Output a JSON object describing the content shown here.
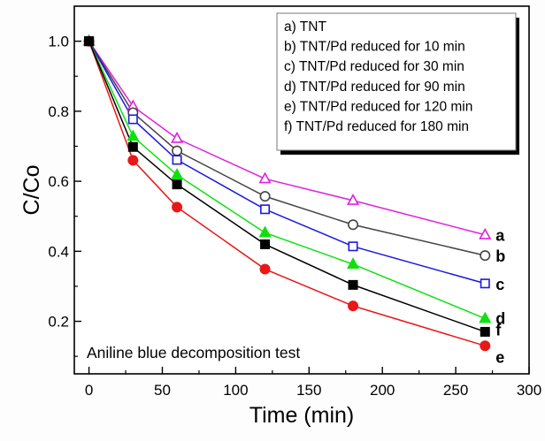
{
  "chart_data": {
    "type": "line",
    "title": "",
    "xlabel": "Time (min)",
    "ylabel": "C/Co",
    "xlim": [
      -10,
      300
    ],
    "ylim": [
      0.05,
      1.1
    ],
    "xticks": [
      0,
      50,
      100,
      150,
      200,
      250,
      300
    ],
    "xtick_labels": [
      "0",
      "50",
      "100",
      "150",
      "200",
      "250",
      "300"
    ],
    "yticks": [
      0.2,
      0.4,
      0.6,
      0.8,
      1.0
    ],
    "ytick_labels": [
      "0.2",
      "0.4",
      "0.6",
      "0.8",
      "1.0"
    ],
    "grid": false,
    "legend_position": "top-right",
    "annotation": "Aniline blue decomposition test",
    "x": [
      0,
      30,
      60,
      120,
      180,
      270
    ],
    "series": [
      {
        "name": "a) TNT",
        "tag": "a",
        "color": "#e020e0",
        "marker": "triangle-open",
        "values": [
          1.0,
          0.814,
          0.722,
          0.607,
          0.545,
          0.447
        ]
      },
      {
        "name": "b) TNT/Pd reduced for 10 min",
        "tag": "b",
        "color": "#444444",
        "marker": "circle-open",
        "values": [
          1.0,
          0.796,
          0.687,
          0.557,
          0.476,
          0.388
        ]
      },
      {
        "name": "c) TNT/Pd reduced for 30 min",
        "tag": "c",
        "color": "#1a1adf",
        "marker": "square-open",
        "values": [
          1.0,
          0.777,
          0.661,
          0.52,
          0.414,
          0.308
        ]
      },
      {
        "name": "d) TNT/Pd reduced for 90 min",
        "tag": "d",
        "color": "#10e010",
        "marker": "triangle-filled",
        "values": [
          1.0,
          0.728,
          0.618,
          0.453,
          0.363,
          0.208
        ]
      },
      {
        "name": "e) TNT/Pd reduced for 120 min",
        "tag": "e",
        "color": "#e81818",
        "marker": "circle-filled",
        "values": [
          1.0,
          0.66,
          0.526,
          0.349,
          0.244,
          0.13
        ]
      },
      {
        "name": "f) TNT/Pd reduced for 180 min",
        "tag": "f",
        "color": "#000000",
        "marker": "square-filled",
        "values": [
          1.0,
          0.698,
          0.591,
          0.42,
          0.304,
          0.17
        ]
      }
    ]
  }
}
